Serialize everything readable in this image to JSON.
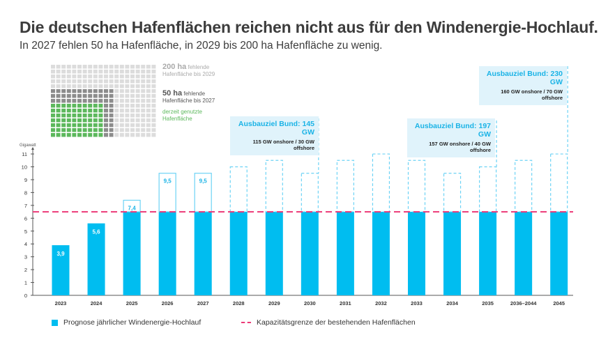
{
  "title": "Die deutschen Hafenflächen reichen nicht aus für den Windenergie-Hochlauf.",
  "subtitle": "In 2027 fehlen 50 ha Hafenfläche, in 2029 bis 200 ha Hafenfläche zu wenig.",
  "waffle": {
    "label_200_big": "200 ha",
    "label_200_small": "fehlende",
    "label_200_line2": "Hafenfläche bis 2029",
    "label_50_big": "50 ha",
    "label_50_small": "fehlende",
    "label_50_line2": "Hafenfläche bis 2027",
    "label_used_line1": "derzeit genutzte",
    "label_used_line2": "Hafenfläche",
    "colors": {
      "light": "#dcdcdc",
      "dark": "#8c8c8c",
      "green": "#5cb85c"
    }
  },
  "callouts": [
    {
      "title": "Ausbauziel Bund: 145 GW",
      "detail": "115 GW onshore / 30 GW offshore",
      "year": "2030"
    },
    {
      "title": "Ausbauziel Bund: 197 GW",
      "detail": "157 GW onshore / 40 GW offshore",
      "year": "2035"
    },
    {
      "title": "Ausbauziel Bund: 230 GW",
      "detail": "160 GW onshore / 70 GW offshore",
      "year": "2045"
    }
  ],
  "chart_data": {
    "type": "bar",
    "ylabel": "Gigawatt",
    "ylim": [
      0,
      11
    ],
    "yticks": [
      0,
      1,
      2,
      3,
      4,
      5,
      6,
      7,
      8,
      9,
      10,
      11
    ],
    "categories": [
      "2023",
      "2024",
      "2025",
      "2026",
      "2027",
      "2028",
      "2029",
      "2030",
      "2031",
      "2032",
      "2033",
      "2034",
      "2035",
      "2036–2044",
      "2045"
    ],
    "values": [
      3.9,
      5.6,
      7.4,
      9.5,
      9.5,
      10,
      10.5,
      9.5,
      10.5,
      11,
      10.5,
      9.5,
      10,
      10.5,
      11
    ],
    "data_labels": [
      "3,9",
      "5,6",
      "7,4",
      "9,5",
      "9,5",
      "",
      "",
      "",
      "",
      "",
      "",
      "",
      "",
      "",
      ""
    ],
    "capacity_limit": 6.5,
    "series_name": "Prognose jährlicher Windenergie-Hochlauf",
    "limit_name": "Kapazitätsgrenze der bestehenden Hafenflächen",
    "colors": {
      "bar": "#00bdf0",
      "outline": "#6dd3f5",
      "limit": "#ec3a78",
      "label_light": "#ffffff",
      "label_blue": "#1ab3e6"
    }
  }
}
